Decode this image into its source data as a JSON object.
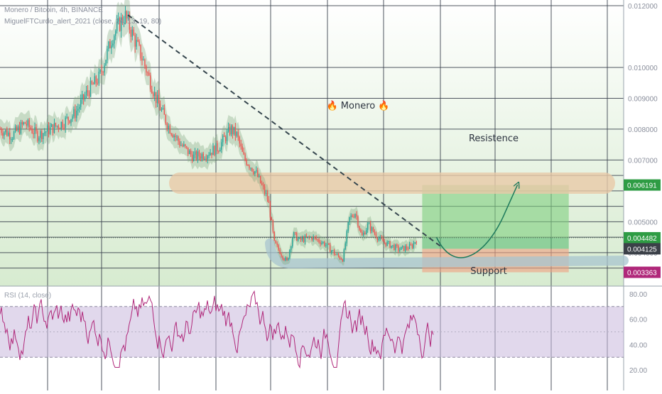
{
  "header": {
    "symbol_line": "Monero / Bitcoin, 4h, BINANCE",
    "indicator_line": "MiguelFTCurdo_alert_2021 (close, 14, 13, 19, 80)"
  },
  "annotations": {
    "monero_label": "🔥 Monero 🔥",
    "resistance_label": "Resistence",
    "support_label": "Support"
  },
  "rsi_panel": {
    "label": "RSI (14, close)"
  },
  "colors": {
    "background_gradient_top": "#ffffff",
    "background_gradient_bottom": "#d7ebd0",
    "candle_up": "#26a69a",
    "candle_down": "#ef5350",
    "trendline": "#37474f",
    "resistance_zone": "#e8c9a8",
    "support_zone": "#a8c4cf",
    "take_profit_zone": "#7fcf7f",
    "stop_loss_zone": "#f0a080",
    "rsi_line": "#b0287a",
    "rsi_band": "#c9b8dc",
    "price_tag_green": "#2e9c44",
    "price_tag_dark": "#3b4048",
    "price_tag_magenta": "#b0287a"
  },
  "chart_data": [
    {
      "type": "candlestick",
      "title": "Monero / Bitcoin, 4h, BINANCE",
      "y_scale": "linear",
      "ylim": [
        0.0031,
        0.012
      ],
      "y_ticks": [
        "0.012000",
        "0.010000",
        "0.009000",
        "0.008000",
        "0.007000",
        "0.005000",
        "0.004000"
      ],
      "y_tick_values": [
        0.012,
        0.01,
        0.009,
        0.008,
        0.007,
        0.005,
        0.004
      ],
      "price_tags": [
        {
          "value": "0.006191",
          "role": "resistance / take profit"
        },
        {
          "value": "0.004482",
          "role": "entry"
        },
        {
          "value": "0.004125",
          "role": "last price"
        },
        {
          "value": "0.003363",
          "role": "support / stop loss"
        }
      ],
      "trendline": {
        "start": [
          0.0,
          0.0117
        ],
        "end": [
          0.66,
          0.00445
        ]
      },
      "resistance_level": 0.00625,
      "support_level": 0.00365,
      "position_box": {
        "entry": 0.004482,
        "take_profit": 0.006191,
        "stop_loss": 0.003363
      },
      "approx_price_path": [
        [
          0.0,
          0.008
        ],
        [
          0.02,
          0.0078
        ],
        [
          0.04,
          0.0082
        ],
        [
          0.06,
          0.0078
        ],
        [
          0.08,
          0.008
        ],
        [
          0.1,
          0.0082
        ],
        [
          0.12,
          0.0085
        ],
        [
          0.14,
          0.0092
        ],
        [
          0.16,
          0.0097
        ],
        [
          0.18,
          0.011
        ],
        [
          0.2,
          0.0117
        ],
        [
          0.21,
          0.0112
        ],
        [
          0.23,
          0.0102
        ],
        [
          0.25,
          0.009
        ],
        [
          0.27,
          0.0081
        ],
        [
          0.29,
          0.0075
        ],
        [
          0.31,
          0.0071
        ],
        [
          0.33,
          0.0072
        ],
        [
          0.35,
          0.0074
        ],
        [
          0.37,
          0.008
        ],
        [
          0.38,
          0.0078
        ],
        [
          0.39,
          0.0071
        ],
        [
          0.41,
          0.0066
        ],
        [
          0.43,
          0.0057
        ],
        [
          0.44,
          0.0043
        ],
        [
          0.45,
          0.004
        ],
        [
          0.46,
          0.0037
        ],
        [
          0.47,
          0.0046
        ],
        [
          0.48,
          0.0044
        ],
        [
          0.5,
          0.0045
        ],
        [
          0.52,
          0.0043
        ],
        [
          0.54,
          0.0039
        ],
        [
          0.55,
          0.0038
        ],
        [
          0.56,
          0.0051
        ],
        [
          0.57,
          0.0053
        ],
        [
          0.58,
          0.0045
        ],
        [
          0.59,
          0.0049
        ],
        [
          0.61,
          0.0044
        ],
        [
          0.63,
          0.0042
        ],
        [
          0.64,
          0.0041
        ],
        [
          0.66,
          0.0042
        ],
        [
          0.67,
          0.0045
        ]
      ],
      "forecast_path": [
        [
          0.66,
          0.0045
        ],
        [
          0.69,
          0.00415
        ],
        [
          0.73,
          0.0044
        ],
        [
          0.77,
          0.0053
        ],
        [
          0.79,
          0.0062
        ]
      ]
    },
    {
      "type": "line",
      "title": "RSI (14, close)",
      "ylim": [
        15,
        85
      ],
      "y_ticks": [
        "80.00",
        "60.00",
        "40.00",
        "20.00"
      ],
      "y_tick_values": [
        80,
        60,
        40,
        20
      ],
      "band": [
        30,
        70
      ]
    }
  ]
}
